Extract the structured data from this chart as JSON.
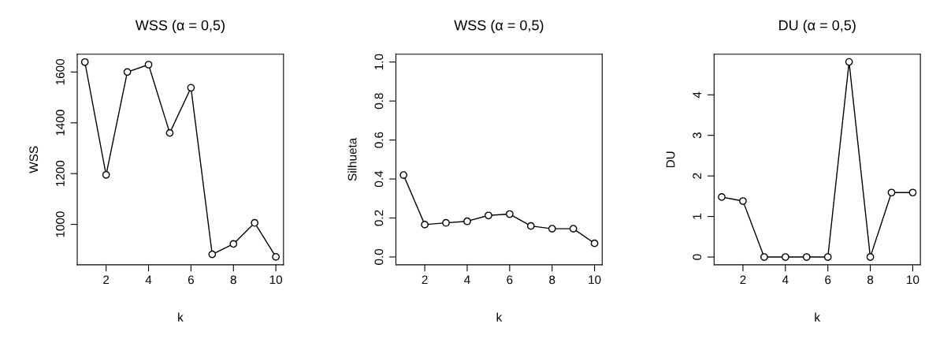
{
  "chart_data": [
    {
      "type": "line",
      "title": "WSS (α = 0,5)",
      "xlabel": "k",
      "ylabel": "WSS",
      "x": [
        1,
        2,
        3,
        4,
        5,
        6,
        7,
        8,
        9,
        10
      ],
      "series": [
        {
          "color": "#000000",
          "values": [
            1639,
            1195,
            1600,
            1629,
            1360,
            1538,
            882,
            923,
            1006,
            872
          ]
        }
      ],
      "xlim": [
        0.64,
        10.36
      ],
      "xticks": [
        2,
        4,
        6,
        8,
        10
      ],
      "ylim": [
        841,
        1670
      ],
      "yticks": [
        1000,
        1200,
        1400,
        1600
      ],
      "marker": "circle",
      "grid": false,
      "legend": false
    },
    {
      "type": "line",
      "title": "WSS (α = 0,5)",
      "xlabel": "k",
      "ylabel": "Silhueta",
      "x": [
        1,
        2,
        3,
        4,
        5,
        6,
        7,
        8,
        9,
        10
      ],
      "series": [
        {
          "color": "#000000",
          "values": [
            0.42,
            0.166,
            0.175,
            0.183,
            0.213,
            0.22,
            0.159,
            0.145,
            0.145,
            0.07
          ]
        }
      ],
      "xlim": [
        0.64,
        10.36
      ],
      "xticks": [
        2,
        4,
        6,
        8,
        10
      ],
      "ylim": [
        -0.04,
        1.04
      ],
      "yticks": [
        {
          "value": 0,
          "label": "0.0"
        },
        0.2,
        0.4,
        0.6,
        0.8,
        {
          "value": 1,
          "label": "1.0"
        }
      ],
      "marker": "circle",
      "grid": false,
      "legend": false
    },
    {
      "type": "line",
      "title": "DU (α = 0,5)",
      "xlabel": "k",
      "ylabel": "DU",
      "x": [
        1,
        2,
        3,
        4,
        5,
        6,
        7,
        8,
        9,
        10
      ],
      "series": [
        {
          "color": "#000000",
          "values": [
            1.48,
            1.38,
            0,
            0,
            0,
            0,
            4.81,
            0,
            1.59,
            1.59
          ]
        }
      ],
      "xlim": [
        0.64,
        10.36
      ],
      "xticks": [
        2,
        4,
        6,
        8,
        10
      ],
      "ylim": [
        -0.19,
        5.0
      ],
      "yticks": [
        0,
        1,
        2,
        3,
        4
      ],
      "marker": "circle",
      "grid": false,
      "legend": false
    }
  ]
}
